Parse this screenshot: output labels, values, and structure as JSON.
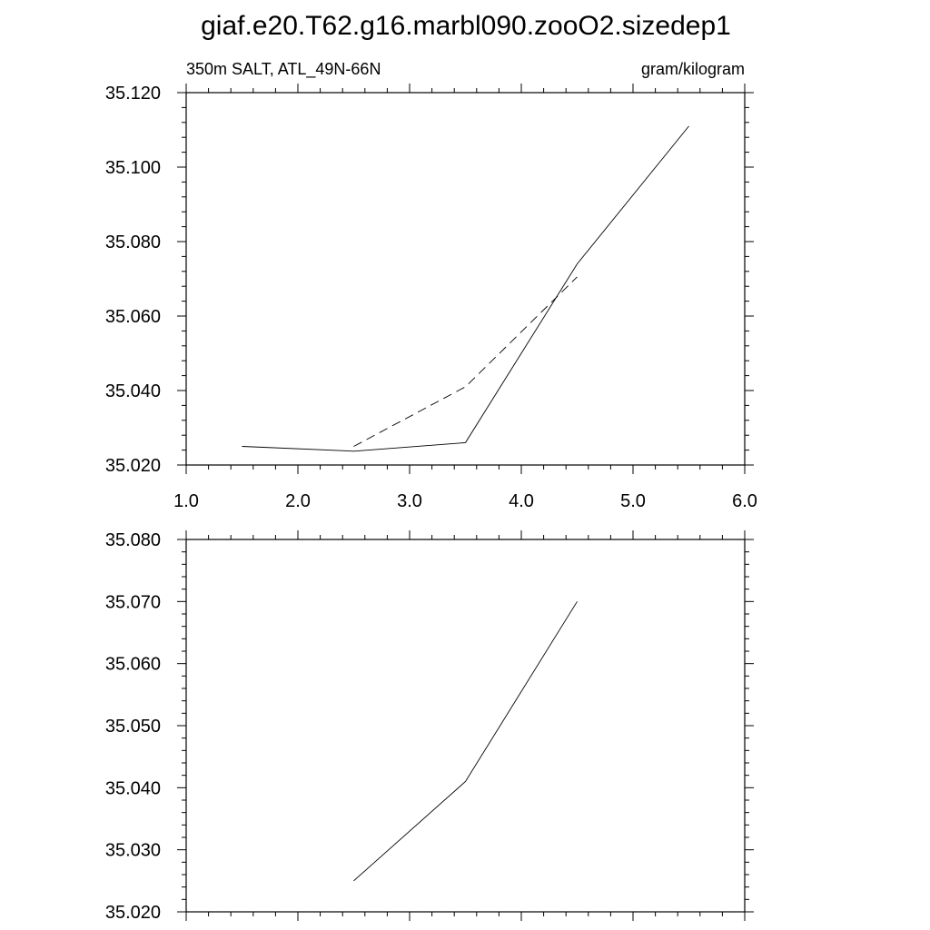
{
  "title": "giaf.e20.T62.g16.marbl090.zooO2.sizedep1",
  "chart_data": [
    {
      "type": "line",
      "left_label": "350m SALT, ATL_49N-66N",
      "right_label": "gram/kilogram",
      "xlim": [
        1.0,
        6.0
      ],
      "ylim": [
        35.02,
        35.12
      ],
      "xticks": [
        1.0,
        2.0,
        3.0,
        4.0,
        5.0,
        6.0
      ],
      "xtick_labels": [
        "1.0",
        "2.0",
        "3.0",
        "4.0",
        "5.0",
        "6.0"
      ],
      "yticks": [
        35.02,
        35.04,
        35.06,
        35.08,
        35.1,
        35.12
      ],
      "ytick_labels": [
        "35.020",
        "35.040",
        "35.060",
        "35.080",
        "35.100",
        "35.120"
      ],
      "series": [
        {
          "style": "solid",
          "x": [
            1.5,
            2.5,
            3.5,
            4.5,
            5.5
          ],
          "y": [
            35.025,
            35.0237,
            35.026,
            35.074,
            35.111
          ]
        },
        {
          "style": "dashed",
          "x": [
            2.5,
            3.5,
            4.5
          ],
          "y": [
            35.025,
            35.041,
            35.0705
          ]
        }
      ]
    },
    {
      "type": "line",
      "xlim": [
        1.0,
        6.0
      ],
      "ylim": [
        35.02,
        35.08
      ],
      "xticks": [
        1.0,
        2.0,
        3.0,
        4.0,
        5.0,
        6.0
      ],
      "yticks": [
        35.02,
        35.03,
        35.04,
        35.05,
        35.06,
        35.07,
        35.08
      ],
      "ytick_labels": [
        "35.020",
        "35.030",
        "35.040",
        "35.050",
        "35.060",
        "35.070",
        "35.080"
      ],
      "series": [
        {
          "style": "solid",
          "x": [
            2.5,
            3.5,
            4.5
          ],
          "y": [
            35.025,
            35.041,
            35.07
          ]
        }
      ]
    }
  ]
}
